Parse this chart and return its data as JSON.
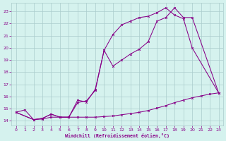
{
  "background_color": "#d5f2ee",
  "grid_color": "#aacccc",
  "line_color": "#880088",
  "xlabel": "Windchill (Refroidissement éolien,°C)",
  "x_ticks": [
    0,
    1,
    2,
    3,
    4,
    5,
    6,
    7,
    8,
    9,
    10,
    11,
    12,
    13,
    14,
    15,
    16,
    17,
    18,
    19,
    20,
    21,
    22,
    23
  ],
  "y_ticks": [
    14,
    15,
    16,
    17,
    18,
    19,
    20,
    21,
    22,
    23
  ],
  "xlim": [
    -0.5,
    23.5
  ],
  "ylim": [
    13.6,
    23.7
  ],
  "line1_x": [
    0,
    1,
    2,
    3,
    4,
    5,
    6,
    7,
    8,
    9,
    10,
    11,
    12,
    13,
    14,
    15,
    16,
    17,
    18,
    19,
    20,
    21,
    22,
    23
  ],
  "line1_y": [
    14.7,
    14.9,
    14.1,
    14.15,
    14.3,
    14.3,
    14.3,
    14.3,
    14.3,
    14.3,
    14.35,
    14.4,
    14.5,
    14.6,
    14.7,
    14.85,
    15.05,
    15.25,
    15.5,
    15.7,
    15.9,
    16.05,
    16.2,
    16.3
  ],
  "line2_x": [
    0,
    2,
    3,
    4,
    5,
    6,
    7,
    8,
    9,
    10,
    11,
    12,
    13,
    14,
    15,
    16,
    17,
    18,
    19,
    20,
    23
  ],
  "line2_y": [
    14.7,
    14.1,
    14.2,
    14.55,
    14.3,
    14.3,
    15.7,
    15.55,
    16.6,
    19.8,
    21.1,
    21.9,
    22.2,
    22.5,
    22.6,
    22.9,
    23.3,
    22.7,
    22.4,
    20.0,
    16.3
  ],
  "line3_x": [
    0,
    2,
    3,
    4,
    5,
    6,
    7,
    8,
    9,
    10,
    11,
    12,
    13,
    14,
    15,
    16,
    17,
    18,
    19,
    20,
    23
  ],
  "line3_y": [
    14.7,
    14.1,
    14.2,
    14.55,
    14.3,
    14.3,
    15.5,
    15.65,
    16.5,
    19.8,
    18.5,
    19.0,
    19.5,
    19.9,
    20.5,
    22.2,
    22.5,
    23.3,
    22.5,
    22.5,
    16.3
  ]
}
